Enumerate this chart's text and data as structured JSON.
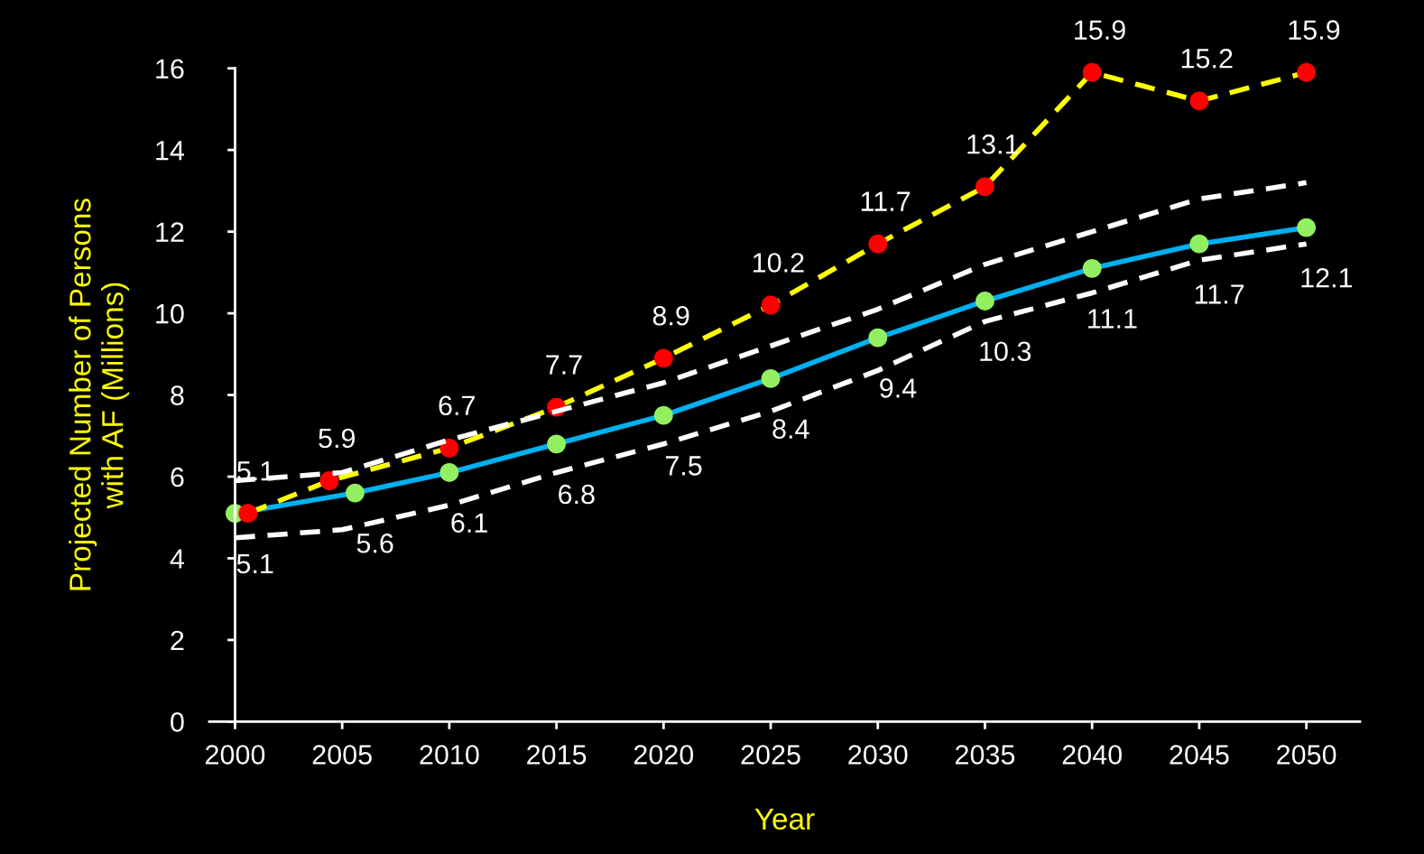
{
  "chart_data": {
    "type": "line",
    "xlabel": "Year",
    "ylabel": "Projected Number of Persons\nwith AF (Millions)",
    "x": [
      2000,
      2005,
      2010,
      2015,
      2020,
      2025,
      2030,
      2035,
      2040,
      2045,
      2050
    ],
    "series": [
      {
        "color": "#ffffff",
        "line_style": "dashed",
        "marker": "none",
        "values": [
          5.9,
          6.1,
          6.9,
          7.6,
          8.3,
          9.2,
          10.1,
          11.2,
          12.0,
          12.8,
          13.2
        ]
      },
      {
        "color": "#ffffff",
        "line_style": "dashed",
        "marker": "none",
        "values": [
          4.5,
          4.7,
          5.3,
          6.1,
          6.8,
          7.6,
          8.6,
          9.8,
          10.5,
          11.3,
          11.7
        ]
      },
      {
        "color": "#00b0f0",
        "line_style": "solid",
        "marker": "circle",
        "colors": [
          "#92f060",
          "#92f060",
          "#92f060",
          "#92f060",
          "#92f060",
          "#92f060",
          "#92f060",
          "#92f060",
          "#92f060",
          "#92f060",
          "#92f060"
        ],
        "data_labels": true,
        "x": [
          2000,
          2005.6,
          2010,
          2015,
          2020,
          2025,
          2030,
          2035,
          2040,
          2045,
          2050
        ],
        "values": [
          5.1,
          5.6,
          6.1,
          6.8,
          7.5,
          8.4,
          9.4,
          10.3,
          11.1,
          11.7,
          12.1
        ]
      },
      {
        "color": "#ffff00",
        "line_style": "dashed",
        "marker": "circle",
        "colors": [
          "#ff0000",
          "#ff0000",
          "#ff0000",
          "#ff0000",
          "#ff0000",
          "#ff0000",
          "#ff0000",
          "#ff0000",
          "#ff0000",
          "#ff0000",
          "#ff0000"
        ],
        "data_labels": true,
        "x": [
          2000.6,
          2004.4,
          2010,
          2015,
          2020,
          2025,
          2030,
          2035,
          2040,
          2045,
          2050
        ],
        "values": [
          5.1,
          5.9,
          6.7,
          7.7,
          8.9,
          10.2,
          11.7,
          13.1,
          15.9,
          15.2,
          15.9
        ]
      }
    ],
    "xlim": [
      1998.8,
      2052.5
    ],
    "xticks": [
      2000,
      2005,
      2010,
      2015,
      2020,
      2025,
      2030,
      2035,
      2040,
      2045,
      2050
    ],
    "ylim": [
      0,
      16
    ],
    "yticks": [
      0,
      2,
      4,
      6,
      8,
      10,
      12,
      14,
      16
    ],
    "legend": false
  }
}
